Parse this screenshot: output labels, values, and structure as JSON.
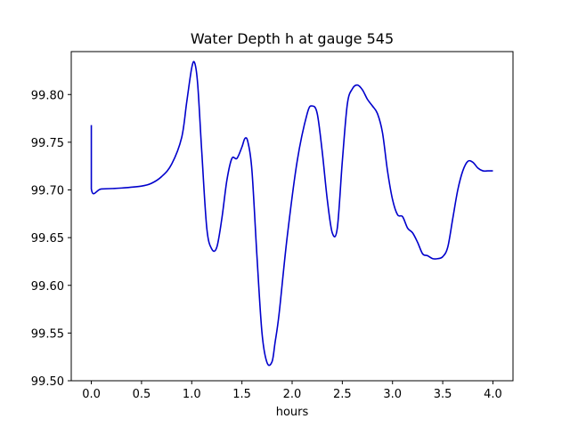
{
  "chart_data": {
    "type": "line",
    "title": "Water Depth h at gauge 545",
    "xlabel": "hours",
    "ylabel": "",
    "xlim": [
      -0.2,
      4.2
    ],
    "ylim": [
      99.5,
      99.845
    ],
    "x_ticks": [
      0.0,
      0.5,
      1.0,
      1.5,
      2.0,
      2.5,
      3.0,
      3.5,
      4.0
    ],
    "x_tick_labels": [
      "0.0",
      "0.5",
      "1.0",
      "1.5",
      "2.0",
      "2.5",
      "3.0",
      "3.5",
      "4.0"
    ],
    "y_ticks": [
      99.5,
      99.55,
      99.6,
      99.65,
      99.7,
      99.75,
      99.8
    ],
    "y_tick_labels": [
      "99.50",
      "99.55",
      "99.60",
      "99.65",
      "99.70",
      "99.75",
      "99.80"
    ],
    "grid": false,
    "series": [
      {
        "color": "#0000cc",
        "x": [
          0.0,
          0.0,
          0.1,
          0.3,
          0.5,
          0.6,
          0.7,
          0.8,
          0.9,
          0.95,
          1.0,
          1.03,
          1.06,
          1.1,
          1.15,
          1.2,
          1.25,
          1.3,
          1.35,
          1.4,
          1.45,
          1.5,
          1.53,
          1.56,
          1.6,
          1.65,
          1.7,
          1.75,
          1.8,
          1.83,
          1.87,
          1.95,
          2.05,
          2.15,
          2.2,
          2.25,
          2.3,
          2.35,
          2.4,
          2.45,
          2.5,
          2.55,
          2.6,
          2.65,
          2.7,
          2.75,
          2.8,
          2.85,
          2.9,
          2.95,
          3.0,
          3.05,
          3.1,
          3.15,
          3.2,
          3.25,
          3.3,
          3.35,
          3.4,
          3.45,
          3.5,
          3.55,
          3.6,
          3.65,
          3.7,
          3.75,
          3.8,
          3.85,
          3.9,
          3.95,
          4.0
        ],
        "y": [
          99.768,
          99.701,
          99.701,
          99.702,
          99.704,
          99.707,
          99.714,
          99.727,
          99.755,
          99.792,
          99.828,
          99.833,
          99.81,
          99.74,
          99.66,
          99.638,
          99.64,
          99.67,
          99.71,
          99.733,
          99.733,
          99.745,
          99.754,
          99.75,
          99.72,
          99.63,
          99.55,
          99.519,
          99.52,
          99.54,
          99.57,
          99.65,
          99.73,
          99.78,
          99.788,
          99.78,
          99.74,
          99.69,
          99.655,
          99.66,
          99.73,
          99.79,
          99.806,
          99.81,
          99.805,
          99.795,
          99.788,
          99.78,
          99.76,
          99.72,
          99.69,
          99.674,
          99.672,
          99.66,
          99.655,
          99.645,
          99.633,
          99.631,
          99.628,
          99.628,
          99.63,
          99.64,
          99.67,
          99.7,
          99.72,
          99.73,
          99.729,
          99.723,
          99.72,
          99.72,
          99.72
        ]
      }
    ]
  }
}
